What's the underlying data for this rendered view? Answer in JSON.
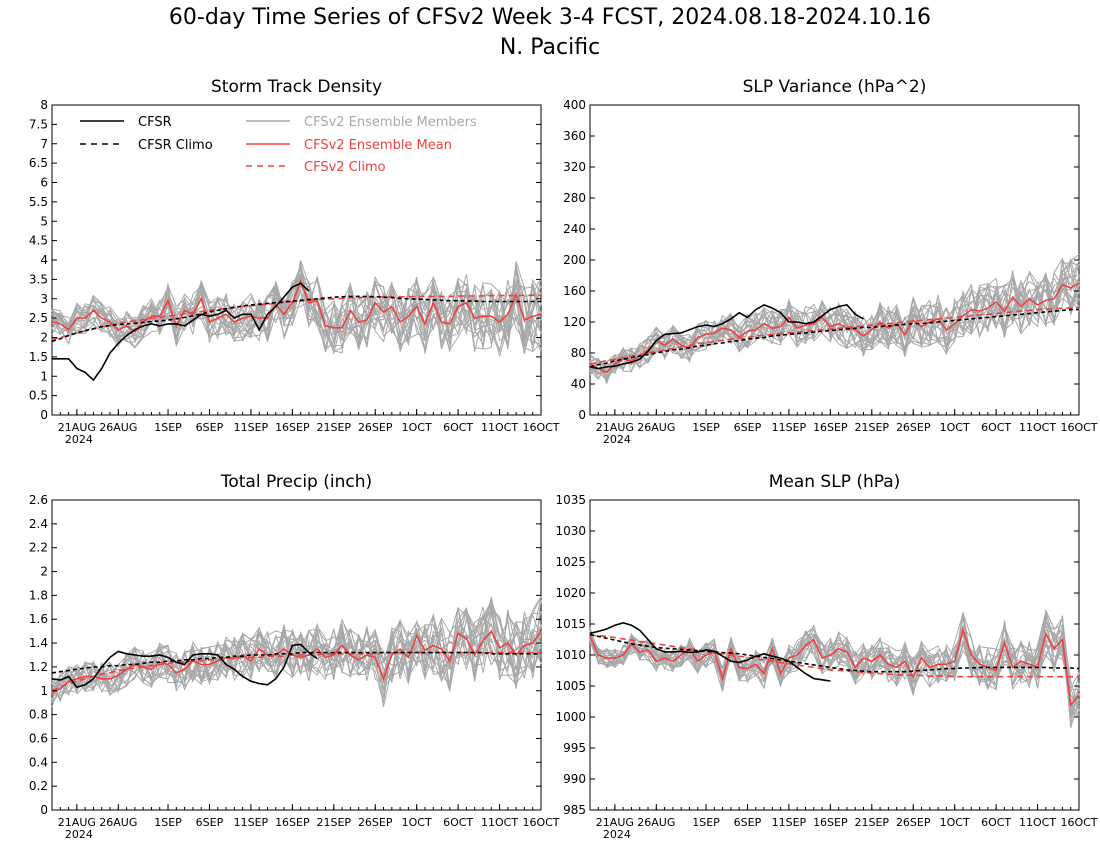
{
  "title": "60-day Time Series of CFSv2 Week 3-4 FCST, 2024.08.18-2024.10.16",
  "subtitle": "N. Pacific",
  "colors": {
    "cfsr": "#000000",
    "members": "#a8a8a8",
    "ens_mean": "#f04040",
    "cfsv2_climo": "#f04040",
    "cfsr_climo": "#000000"
  },
  "legend": [
    {
      "label": "CFSR",
      "style": "solid",
      "color": "#000000"
    },
    {
      "label": "CFSR Climo",
      "style": "dashed",
      "color": "#000000"
    },
    {
      "label": "CFSv2 Ensemble Members",
      "style": "solid",
      "color": "#a8a8a8"
    },
    {
      "label": "CFSv2 Ensemble Mean",
      "style": "solid",
      "color": "#f04040"
    },
    {
      "label": "CFSv2 Climo",
      "style": "dashed",
      "color": "#f04040"
    }
  ],
  "x_ticks": [
    "21AUG",
    "26AUG",
    "1SEP",
    "6SEP",
    "11SEP",
    "16SEP",
    "21SEP",
    "26SEP",
    "1OCT",
    "6OCT",
    "11OCT",
    "16OCT"
  ],
  "x_year_label": "2024",
  "chart_data": [
    {
      "type": "line",
      "title": "Storm Track Density",
      "ylim": [
        0,
        8
      ],
      "yticks": [
        "0",
        "0.5",
        "1",
        "1.5",
        "2",
        "2.5",
        "3",
        "3.5",
        "4",
        "4.5",
        "5",
        "5.5",
        "6",
        "6.5",
        "7",
        "7.5",
        "8"
      ],
      "ytick_values": [
        0,
        0.5,
        1,
        1.5,
        2,
        2.5,
        3,
        3.5,
        4,
        4.5,
        5,
        5.5,
        6,
        6.5,
        7,
        7.5,
        8
      ],
      "x_start": "2024-08-18",
      "x_end": "2024-10-16",
      "cfsr": [
        1.45,
        1.45,
        1.45,
        1.2,
        1.1,
        0.9,
        1.2,
        1.6,
        1.85,
        2.05,
        2.2,
        2.3,
        2.35,
        2.3,
        2.35,
        2.35,
        2.3,
        2.45,
        2.6,
        2.55,
        2.6,
        2.7,
        2.5,
        2.6,
        2.6,
        2.2,
        2.6,
        2.8,
        3.05,
        3.3,
        3.4,
        3.2
      ],
      "cfsr_climo": [
        1.9,
        1.97,
        2.05,
        2.12,
        2.18,
        2.23,
        2.28,
        2.31,
        2.33,
        2.35,
        2.37,
        2.39,
        2.41,
        2.43,
        2.45,
        2.48,
        2.52,
        2.56,
        2.61,
        2.66,
        2.7,
        2.74,
        2.78,
        2.81,
        2.84,
        2.86,
        2.88,
        2.9,
        2.92,
        2.94,
        2.96,
        2.98,
        3.0,
        3.02,
        3.04,
        3.05,
        3.06,
        3.06,
        3.06,
        3.05,
        3.04,
        3.03,
        3.01,
        3.0,
        2.99,
        2.98,
        2.97,
        2.96,
        2.95,
        2.95,
        2.94,
        2.94,
        2.93,
        2.93,
        2.93,
        2.93,
        2.93,
        2.93,
        2.93,
        2.93
      ],
      "cfsv2_climo": [
        1.95,
        2.0,
        2.06,
        2.12,
        2.17,
        2.22,
        2.27,
        2.32,
        2.36,
        2.4,
        2.43,
        2.46,
        2.49,
        2.52,
        2.55,
        2.58,
        2.61,
        2.64,
        2.67,
        2.7,
        2.72,
        2.75,
        2.77,
        2.8,
        2.82,
        2.84,
        2.86,
        2.88,
        2.9,
        2.92,
        2.94,
        2.96,
        2.98,
        2.99,
        3.0,
        3.01,
        3.02,
        3.03,
        3.04,
        3.04,
        3.05,
        3.05,
        3.05,
        3.05,
        3.06,
        3.06,
        3.06,
        3.06,
        3.06,
        3.07,
        3.07,
        3.07,
        3.07,
        3.08,
        3.08,
        3.08,
        3.08,
        3.09,
        3.09,
        3.09
      ],
      "ensemble_mean": [
        2.4,
        2.35,
        2.2,
        2.5,
        2.5,
        2.7,
        2.5,
        2.4,
        2.2,
        2.3,
        2.15,
        2.4,
        2.55,
        2.55,
        2.95,
        2.3,
        2.7,
        2.6,
        3.0,
        2.4,
        2.5,
        2.6,
        2.4,
        2.5,
        2.55,
        2.5,
        2.5,
        2.85,
        2.6,
        2.9,
        3.45,
        2.9,
        2.95,
        2.3,
        2.25,
        2.25,
        2.7,
        2.4,
        2.45,
        2.9,
        2.65,
        2.8,
        2.4,
        2.55,
        2.8,
        2.35,
        2.9,
        2.4,
        2.35,
        2.8,
        2.9,
        2.5,
        2.55,
        2.55,
        2.4,
        2.6,
        3.1,
        2.45,
        2.55,
        2.6
      ]
    },
    {
      "type": "line",
      "title": "SLP Variance (hPa^2)",
      "ylim": [
        0,
        400
      ],
      "yticks": [
        "0",
        "40",
        "80",
        "120",
        "160",
        "200",
        "240",
        "280",
        "320",
        "360",
        "400"
      ],
      "ytick_values": [
        0,
        40,
        80,
        120,
        160,
        200,
        240,
        280,
        320,
        360,
        400
      ],
      "x_start": "2024-08-18",
      "x_end": "2024-10-16",
      "cfsr": [
        62,
        60,
        62,
        63,
        66,
        68,
        72,
        82,
        96,
        104,
        105,
        106,
        110,
        114,
        116,
        114,
        118,
        124,
        132,
        126,
        136,
        142,
        138,
        132,
        120,
        120,
        118,
        120,
        128,
        136,
        140,
        142,
        130,
        124
      ],
      "cfsr_climo": [
        62,
        65,
        67,
        70,
        72,
        74,
        76,
        78,
        80,
        82,
        84,
        85,
        87,
        89,
        90,
        92,
        93,
        95,
        96,
        98,
        99,
        100,
        102,
        103,
        104,
        105,
        106,
        107,
        108,
        109,
        110,
        111,
        112,
        113,
        113,
        114,
        115,
        116,
        117,
        118,
        118,
        119,
        120,
        121,
        122,
        123,
        124,
        125,
        126,
        127,
        128,
        129,
        130,
        131,
        132,
        133,
        134,
        135,
        136,
        136
      ],
      "cfsv2_climo": [
        66,
        68,
        70,
        72,
        74,
        76,
        78,
        80,
        82,
        84,
        86,
        88,
        90,
        92,
        93,
        95,
        96,
        98,
        99,
        100,
        102,
        103,
        104,
        105,
        106,
        107,
        108,
        109,
        110,
        111,
        112,
        113,
        114,
        115,
        116,
        117,
        118,
        119,
        120,
        121,
        122,
        123,
        124,
        125,
        126,
        127,
        128,
        129,
        130,
        131,
        132,
        133,
        134,
        135,
        136,
        137,
        137,
        138,
        138,
        139
      ],
      "ensemble_mean": [
        66,
        60,
        55,
        66,
        72,
        70,
        76,
        84,
        96,
        90,
        98,
        90,
        86,
        100,
        104,
        106,
        112,
        110,
        100,
        108,
        110,
        118,
        112,
        114,
        126,
        112,
        116,
        118,
        126,
        114,
        118,
        112,
        110,
        102,
        110,
        120,
        112,
        118,
        104,
        122,
        114,
        120,
        124,
        110,
        118,
        128,
        136,
        134,
        138,
        146,
        134,
        152,
        140,
        150,
        142,
        148,
        150,
        168,
        164,
        170
      ]
    },
    {
      "type": "line",
      "title": "Total Precip (inch)",
      "ylim": [
        0,
        2.6
      ],
      "yticks": [
        "0",
        "0.2",
        "0.4",
        "0.6",
        "0.8",
        "1",
        "1.2",
        "1.4",
        "1.6",
        "1.8",
        "2",
        "2.2",
        "2.4",
        "2.6"
      ],
      "ytick_values": [
        0,
        0.2,
        0.4,
        0.6,
        0.8,
        1.0,
        1.2,
        1.4,
        1.6,
        1.8,
        2.0,
        2.2,
        2.4,
        2.6
      ],
      "x_start": "2024-08-18",
      "x_end": "2024-10-16",
      "cfsr": [
        1.1,
        1.09,
        1.12,
        1.03,
        1.05,
        1.1,
        1.2,
        1.28,
        1.33,
        1.31,
        1.3,
        1.29,
        1.29,
        1.3,
        1.28,
        1.24,
        1.22,
        1.3,
        1.31,
        1.31,
        1.3,
        1.22,
        1.18,
        1.12,
        1.08,
        1.06,
        1.05,
        1.1,
        1.2,
        1.38,
        1.39,
        1.32,
        1.27
      ],
      "cfsr_climo": [
        1.15,
        1.16,
        1.17,
        1.18,
        1.19,
        1.2,
        1.2,
        1.21,
        1.21,
        1.22,
        1.22,
        1.23,
        1.24,
        1.24,
        1.25,
        1.25,
        1.26,
        1.26,
        1.27,
        1.27,
        1.28,
        1.28,
        1.29,
        1.29,
        1.3,
        1.3,
        1.3,
        1.31,
        1.31,
        1.31,
        1.32,
        1.32,
        1.32,
        1.32,
        1.32,
        1.32,
        1.32,
        1.32,
        1.32,
        1.32,
        1.32,
        1.32,
        1.32,
        1.32,
        1.32,
        1.32,
        1.32,
        1.32,
        1.32,
        1.32,
        1.32,
        1.32,
        1.32,
        1.31,
        1.31,
        1.31,
        1.31,
        1.31,
        1.31,
        1.31
      ],
      "cfsv2_climo": [
        1.0,
        1.03,
        1.06,
        1.08,
        1.1,
        1.12,
        1.14,
        1.15,
        1.17,
        1.18,
        1.19,
        1.2,
        1.21,
        1.22,
        1.23,
        1.24,
        1.24,
        1.25,
        1.25,
        1.26,
        1.26,
        1.27,
        1.27,
        1.28,
        1.28,
        1.28,
        1.29,
        1.29,
        1.29,
        1.3,
        1.3,
        1.3,
        1.3,
        1.31,
        1.31,
        1.31,
        1.31,
        1.31,
        1.31,
        1.31,
        1.32,
        1.32,
        1.32,
        1.32,
        1.32,
        1.32,
        1.32,
        1.32,
        1.32,
        1.32,
        1.32,
        1.32,
        1.32,
        1.32,
        1.32,
        1.32,
        1.32,
        1.32,
        1.32,
        1.32
      ],
      "ensemble_mean": [
        0.98,
        1.02,
        1.08,
        1.1,
        1.12,
        1.12,
        1.1,
        1.1,
        1.13,
        1.18,
        1.22,
        1.2,
        1.18,
        1.24,
        1.22,
        1.15,
        1.18,
        1.25,
        1.22,
        1.22,
        1.25,
        1.28,
        1.27,
        1.3,
        1.25,
        1.35,
        1.3,
        1.3,
        1.35,
        1.3,
        1.28,
        1.3,
        1.35,
        1.28,
        1.3,
        1.38,
        1.3,
        1.26,
        1.3,
        1.28,
        1.1,
        1.3,
        1.35,
        1.28,
        1.46,
        1.34,
        1.38,
        1.35,
        1.25,
        1.48,
        1.44,
        1.3,
        1.42,
        1.5,
        1.36,
        1.4,
        1.3,
        1.38,
        1.4,
        1.5
      ]
    },
    {
      "type": "line",
      "title": "Mean SLP (hPa)",
      "ylim": [
        985,
        1035
      ],
      "yticks": [
        "985",
        "990",
        "995",
        "1000",
        "1005",
        "1010",
        "1015",
        "1020",
        "1025",
        "1030",
        "1035"
      ],
      "ytick_values": [
        985,
        990,
        995,
        1000,
        1005,
        1010,
        1015,
        1020,
        1025,
        1030,
        1035
      ],
      "x_start": "2024-08-18",
      "x_end": "2024-10-16",
      "cfsr": [
        1013.5,
        1013.8,
        1014.2,
        1014.8,
        1015.2,
        1014.8,
        1014.0,
        1012.5,
        1011.0,
        1010.5,
        1010.5,
        1010.6,
        1010.4,
        1010.5,
        1010.8,
        1010.6,
        1009.8,
        1009.0,
        1008.8,
        1009.2,
        1009.8,
        1010.2,
        1009.8,
        1009.5,
        1009.0,
        1008.0,
        1007.0,
        1006.2,
        1006.0,
        1005.8
      ],
      "cfsr_climo": [
        1013.3,
        1013.0,
        1012.7,
        1012.4,
        1012.1,
        1011.8,
        1011.6,
        1011.4,
        1011.2,
        1011.1,
        1011.0,
        1010.9,
        1010.8,
        1010.7,
        1010.6,
        1010.5,
        1010.4,
        1010.3,
        1010.2,
        1010.0,
        1009.8,
        1009.6,
        1009.4,
        1009.2,
        1009.0,
        1008.8,
        1008.6,
        1008.4,
        1008.2,
        1008.0,
        1007.8,
        1007.6,
        1007.5,
        1007.4,
        1007.3,
        1007.3,
        1007.3,
        1007.3,
        1007.3,
        1007.4,
        1007.5,
        1007.6,
        1007.7,
        1007.8,
        1007.8,
        1007.9,
        1007.9,
        1008.0,
        1008.0,
        1008.0,
        1008.0,
        1008.0,
        1008.0,
        1008.0,
        1008.0,
        1008.0,
        1007.9,
        1007.9,
        1007.9,
        1007.8
      ],
      "cfsv2_climo": [
        1013.2,
        1013.1,
        1013.0,
        1012.8,
        1012.6,
        1012.4,
        1012.2,
        1012.0,
        1011.8,
        1011.6,
        1011.4,
        1011.2,
        1011.0,
        1010.8,
        1010.6,
        1010.4,
        1010.2,
        1010.0,
        1009.8,
        1009.6,
        1009.4,
        1009.2,
        1009.0,
        1008.8,
        1008.6,
        1008.4,
        1008.2,
        1008.0,
        1007.8,
        1007.6,
        1007.5,
        1007.4,
        1007.3,
        1007.2,
        1007.1,
        1007.0,
        1006.9,
        1006.8,
        1006.8,
        1006.7,
        1006.7,
        1006.6,
        1006.6,
        1006.6,
        1006.5,
        1006.5,
        1006.5,
        1006.5,
        1006.5,
        1006.5,
        1006.5,
        1006.5,
        1006.5,
        1006.5,
        1006.5,
        1006.5,
        1006.5,
        1006.5,
        1006.5,
        1006.5
      ],
      "ensemble_mean": [
        1013.0,
        1010.0,
        1009.5,
        1009.5,
        1010.0,
        1011.8,
        1010.5,
        1010.8,
        1009.0,
        1009.5,
        1009.0,
        1010.0,
        1011.0,
        1009.0,
        1010.0,
        1010.5,
        1006.2,
        1011.0,
        1008.0,
        1007.8,
        1008.5,
        1007.0,
        1011.0,
        1007.0,
        1009.5,
        1010.0,
        1011.5,
        1012.5,
        1009.5,
        1010.0,
        1011.0,
        1010.5,
        1008.0,
        1009.5,
        1009.0,
        1010.0,
        1008.5,
        1008.0,
        1009.0,
        1006.5,
        1009.5,
        1008.0,
        1008.5,
        1008.5,
        1009.0,
        1014.0,
        1010.0,
        1008.5,
        1008.0,
        1007.5,
        1012.0,
        1008.0,
        1009.0,
        1008.5,
        1008.0,
        1013.5,
        1011.0,
        1012.5,
        1002.0,
        1003.5
      ]
    }
  ]
}
